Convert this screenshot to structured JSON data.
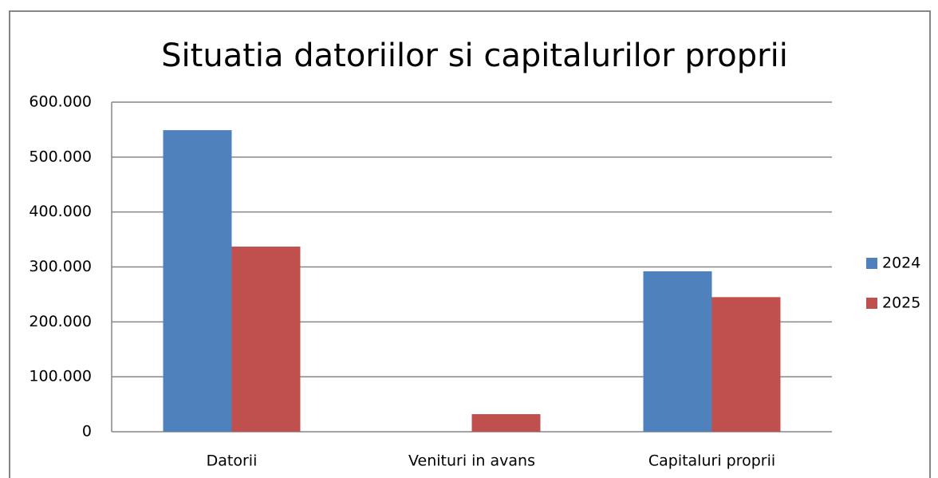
{
  "chart_data": {
    "type": "bar",
    "title": "Situatia datoriilor si capitalurilor proprii",
    "categories": [
      "Datorii",
      "Venituri in avans",
      "Capitaluri proprii"
    ],
    "series": [
      {
        "name": "2024",
        "color": "#4f81bd",
        "values": [
          549000,
          0,
          292000
        ]
      },
      {
        "name": "2025",
        "color": "#c0504d",
        "values": [
          337000,
          32000,
          245000
        ]
      }
    ],
    "ylim": [
      0,
      600000
    ],
    "yticks": [
      0,
      {
        "value": 100000,
        "label": "100.000"
      },
      {
        "value": 200000,
        "label": "200.000"
      },
      {
        "value": 300000,
        "label": "300.000"
      },
      {
        "value": 400000,
        "label": "400.000"
      },
      {
        "value": 500000,
        "label": "500.000"
      },
      {
        "value": 600000,
        "label": "600.000"
      }
    ],
    "grid": true,
    "legend": "right"
  }
}
